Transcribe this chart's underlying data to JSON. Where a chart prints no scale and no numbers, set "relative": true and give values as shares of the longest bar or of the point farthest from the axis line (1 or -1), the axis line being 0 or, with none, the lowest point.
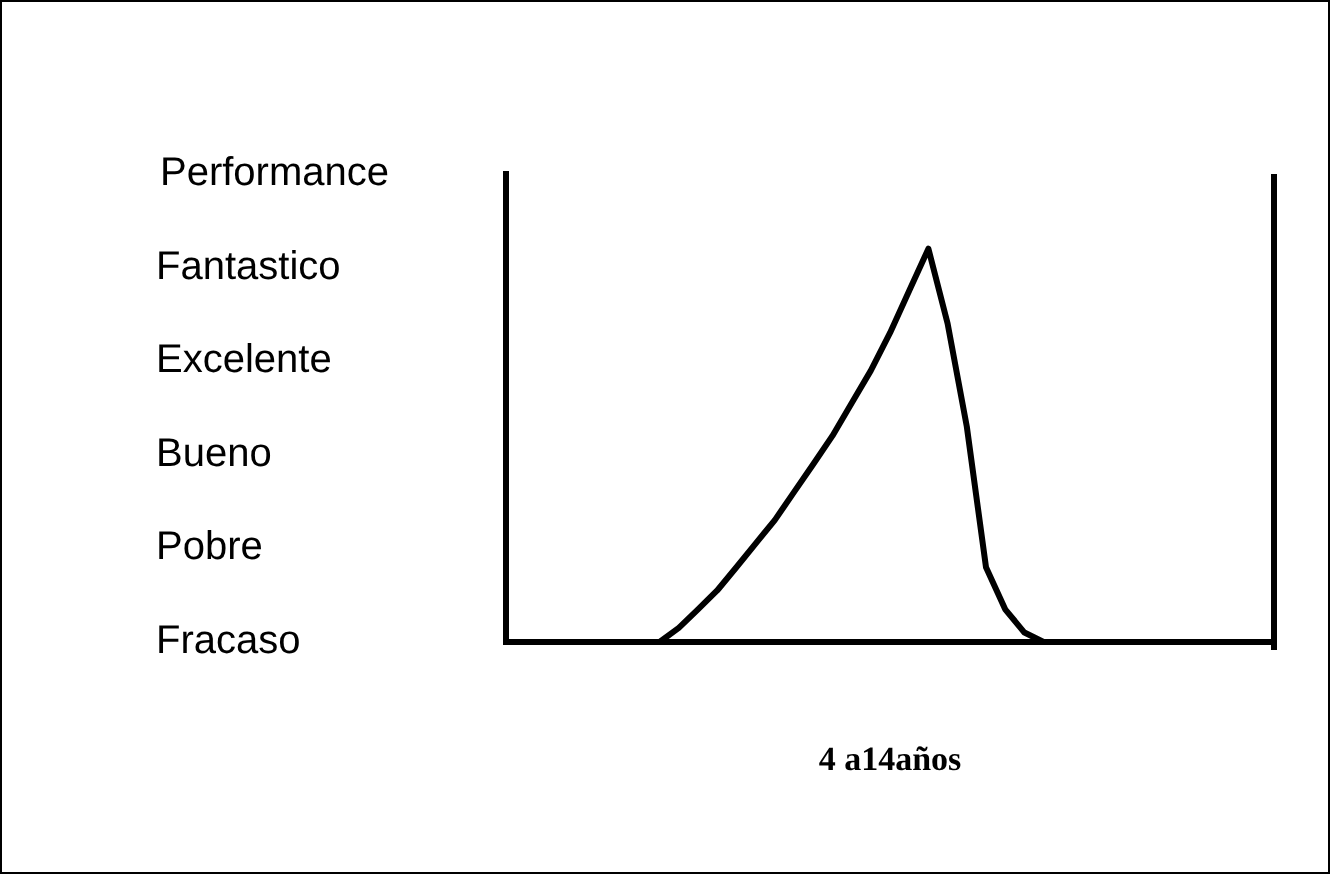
{
  "chart_data": {
    "type": "line",
    "ylabel": "Performance",
    "xlabel": "4 a14años",
    "relative": true,
    "annotations": [
      "Fantastico",
      "Excelente",
      "Bueno",
      "Pobre",
      "Fracaso"
    ],
    "categories": [
      null,
      null,
      null,
      null,
      null,
      null,
      null,
      null,
      null,
      null,
      null,
      null,
      null,
      null,
      null,
      null,
      null,
      null,
      null,
      null,
      null,
      null,
      null,
      null,
      null,
      null,
      null,
      null,
      null,
      null,
      null,
      null,
      null,
      null,
      null,
      null,
      null,
      null,
      null,
      null,
      null
    ],
    "series": [
      {
        "color": "#000000",
        "values": [
          0,
          0,
          0,
          0,
          0,
          0,
          0,
          0,
          0,
          0.036,
          0.083,
          0.131,
          0.19,
          0.25,
          0.31,
          0.381,
          0.452,
          0.524,
          0.607,
          0.69,
          0.786,
          0.893,
          1,
          0.81,
          0.548,
          0.19,
          0.083,
          0.024,
          0,
          0,
          0,
          0,
          0,
          0,
          0,
          0,
          0,
          0,
          0,
          0,
          0
        ]
      }
    ],
    "grid": false,
    "legend": false,
    "marker": "none",
    "line_style": "solid"
  }
}
